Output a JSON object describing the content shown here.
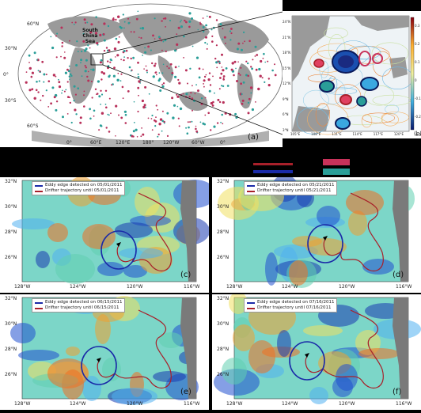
{
  "top_left": {
    "label_south_china_sea": "South\nChina\nSea",
    "panel_tag": "(a)",
    "lat_labels": [
      "60°N",
      "30°N",
      "0°",
      "30°S",
      "60°S"
    ],
    "lon_labels": [
      "0°",
      "60°E",
      "120°E",
      "180°",
      "120°W",
      "60°W",
      "0°"
    ]
  },
  "top_right": {
    "lat_labels": [
      "24°N",
      "21°N",
      "18°N",
      "15°N",
      "12°N",
      "9°N",
      "6°N",
      "3°N"
    ],
    "lon_labels": [
      "105°E",
      "108°E",
      "111°E",
      "114°E",
      "117°E",
      "120°E"
    ],
    "colorbar_ticks": [
      "0.3",
      "0.2",
      "0.1",
      "0",
      "-0.1",
      "-0.2",
      "-0.3"
    ],
    "panel_tag": "(b)"
  },
  "swatches": {
    "colors": [
      "#a8202a",
      "#1a2aa8",
      "#c8325a",
      "#2a9e98"
    ]
  },
  "panels": [
    {
      "tag": "(c)",
      "legend_edge": "Eddy edge detected on 05/01/2011",
      "legend_traj": "Drifter trajectory until 05/01/2011"
    },
    {
      "tag": "(d)",
      "legend_edge": "Eddy edge detected on 05/21/2011",
      "legend_traj": "Drifter trajectory until 05/21/2011"
    },
    {
      "tag": "(e)",
      "legend_edge": "Eddy edge detected on 06/15/2011",
      "legend_traj": "Drifter trajectory until 06/15/2011"
    },
    {
      "tag": "(f)",
      "legend_edge": "Eddy edge detected on 07/16/2011",
      "legend_traj": "Drifter trajectory until 07/16/2011"
    }
  ],
  "lat_ticks": [
    "32°N",
    "30°N",
    "28°N",
    "26°N"
  ],
  "lon_ticks": [
    "128°W",
    "124°W",
    "120°W",
    "116°W"
  ]
}
